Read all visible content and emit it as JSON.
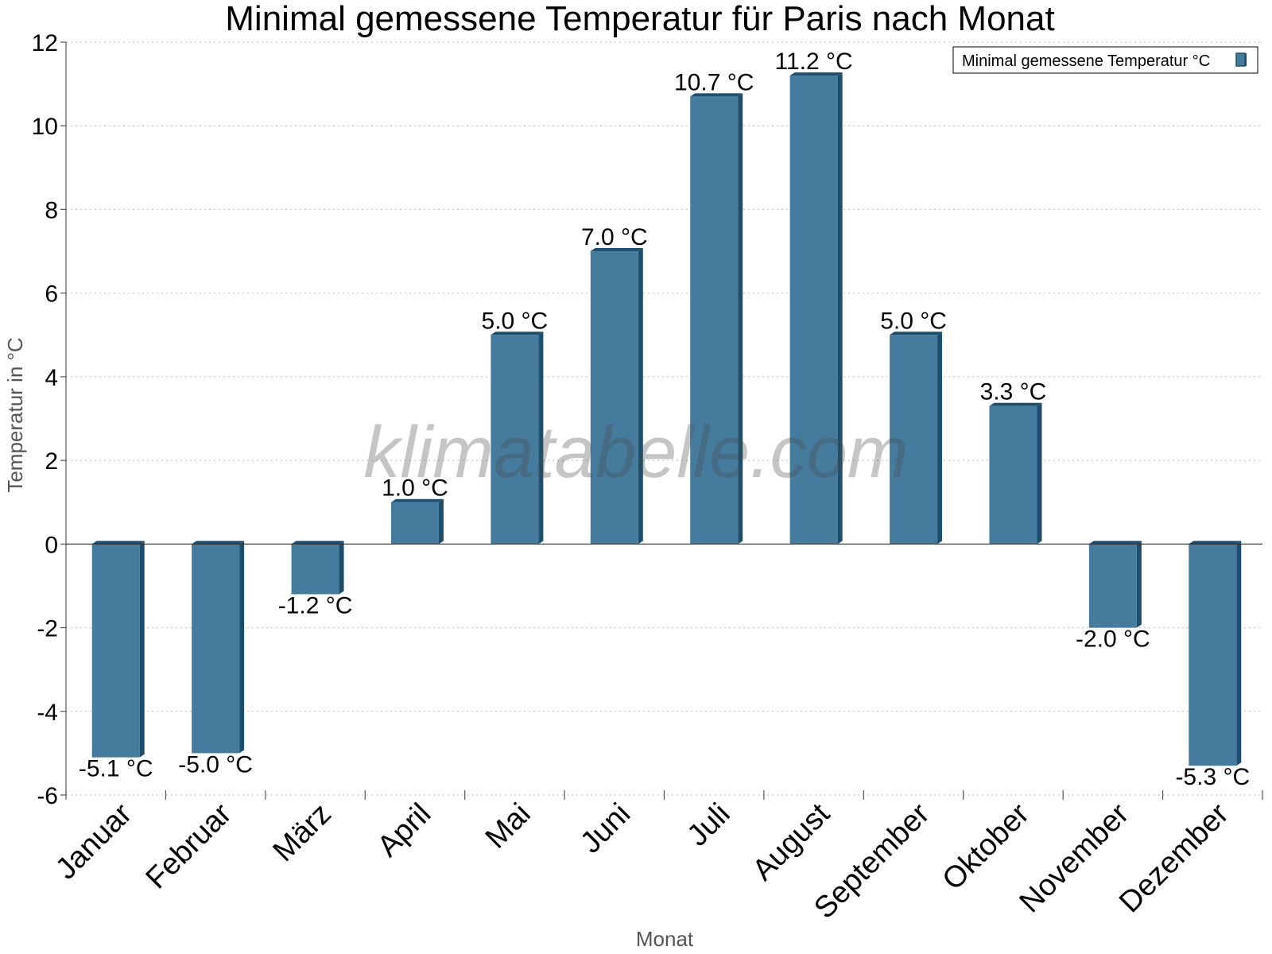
{
  "chart_data": {
    "type": "bar",
    "title": "Minimal gemessene Temperatur für Paris nach Monat",
    "xlabel": "Monat",
    "ylabel": "Temperatur in °C",
    "categories": [
      "Januar",
      "Februar",
      "März",
      "April",
      "Mai",
      "Juni",
      "Juli",
      "August",
      "September",
      "Oktober",
      "November",
      "Dezember"
    ],
    "series": [
      {
        "name": "Minimal gemessene Temperatur °C",
        "values": [
          -5.1,
          -5.0,
          -1.2,
          1.0,
          5.0,
          7.0,
          10.7,
          11.2,
          5.0,
          3.3,
          -2.0,
          -5.3
        ]
      }
    ],
    "data_labels": [
      "-5.1 °C",
      "-5.0 °C",
      "-1.2 °C",
      "1.0 °C",
      "5.0 °C",
      "7.0 °C",
      "10.7 °C",
      "11.2 °C",
      "5.0 °C",
      "3.3 °C",
      "-2.0 °C",
      "-5.3 °C"
    ],
    "ylim": [
      -6,
      12
    ],
    "yticks": [
      -6,
      -4,
      -2,
      0,
      2,
      4,
      6,
      8,
      10,
      12
    ],
    "grid": true,
    "legend_position": "top-right",
    "colors": {
      "bar_front": "#457b9d",
      "bar_side": "#1d4e6e",
      "bar_top": "#1d4e6e",
      "grid": "#c8c8c8",
      "axis": "#555555"
    }
  },
  "watermark": "klimatabelle.com"
}
